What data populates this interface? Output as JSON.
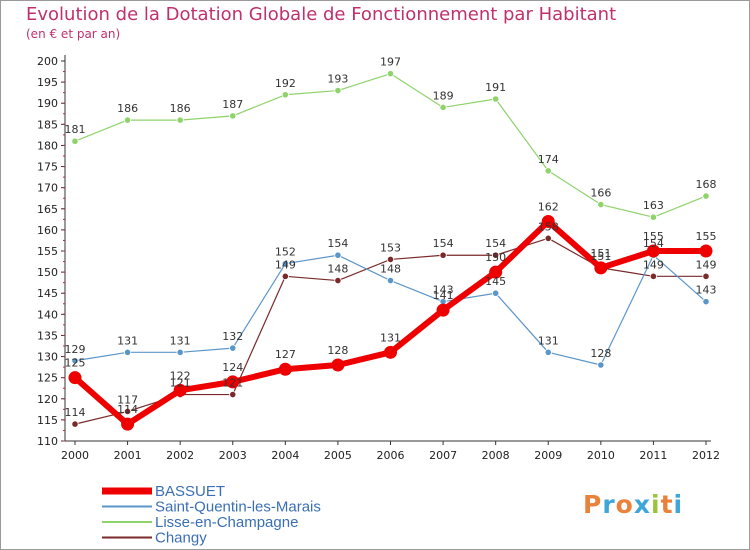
{
  "title": "Evolution de la Dotation Globale de Fonctionnement par Habitant",
  "subtitle": "(en € et par an)",
  "logo": {
    "text": "Proxiti",
    "colors": [
      "#e9823a",
      "#3fa6d9",
      "#e9823a",
      "#3fa6d9",
      "#9cc43a",
      "#e9823a",
      "#3fa6d9"
    ]
  },
  "chart_data": {
    "type": "line",
    "x": [
      "2000",
      "2001",
      "2002",
      "2003",
      "2004",
      "2005",
      "2006",
      "2007",
      "2008",
      "2009",
      "2010",
      "2011",
      "2012"
    ],
    "ylim": [
      110,
      200
    ],
    "yticks": [
      110,
      115,
      120,
      125,
      130,
      135,
      140,
      145,
      150,
      155,
      160,
      165,
      170,
      175,
      180,
      185,
      190,
      195,
      200
    ],
    "grid": false,
    "legend_position": "bottom-left",
    "series": [
      {
        "name": "Changy",
        "color": "#7a2a2a",
        "width": 1.2,
        "values": [
          114,
          117,
          121,
          121,
          149,
          148,
          153,
          154,
          154,
          158,
          151,
          149,
          149
        ],
        "labels": [
          "114",
          "117",
          "121",
          "121",
          "149",
          "148",
          "153",
          "154",
          "154",
          "158",
          "151",
          "149",
          "149"
        ]
      },
      {
        "name": "Saint-Quentin-les-Marais",
        "color": "#5b96c9",
        "width": 1.2,
        "values": [
          129,
          131,
          131,
          132,
          152,
          154,
          148,
          143,
          145,
          131,
          128,
          154,
          143
        ],
        "labels": [
          "129",
          "131",
          "131",
          "132",
          "152",
          "154",
          "148",
          "143",
          "145",
          "131",
          "128",
          "154",
          "143"
        ]
      },
      {
        "name": "Lisse-en-Champagne",
        "color": "#8ed36b",
        "width": 1.2,
        "values": [
          181,
          186,
          186,
          187,
          192,
          193,
          197,
          189,
          191,
          174,
          166,
          163,
          168
        ],
        "labels": [
          "181",
          "186",
          "186",
          "187",
          "192",
          "193",
          "197",
          "189",
          "191",
          "174",
          "166",
          "163",
          "168"
        ]
      },
      {
        "name": "BASSUET",
        "color": "#ee0000",
        "width": 6,
        "values": [
          125,
          114,
          122,
          124,
          127,
          128,
          131,
          141,
          150,
          162,
          151,
          155,
          155
        ],
        "labels": [
          "125",
          "114",
          "122",
          "124",
          "127",
          "128",
          "131",
          "141",
          "150",
          "162",
          "151",
          "155",
          "155"
        ]
      }
    ],
    "legend_order": [
      "BASSUET",
      "Saint-Quentin-les-Marais",
      "Lisse-en-Champagne",
      "Changy"
    ]
  }
}
